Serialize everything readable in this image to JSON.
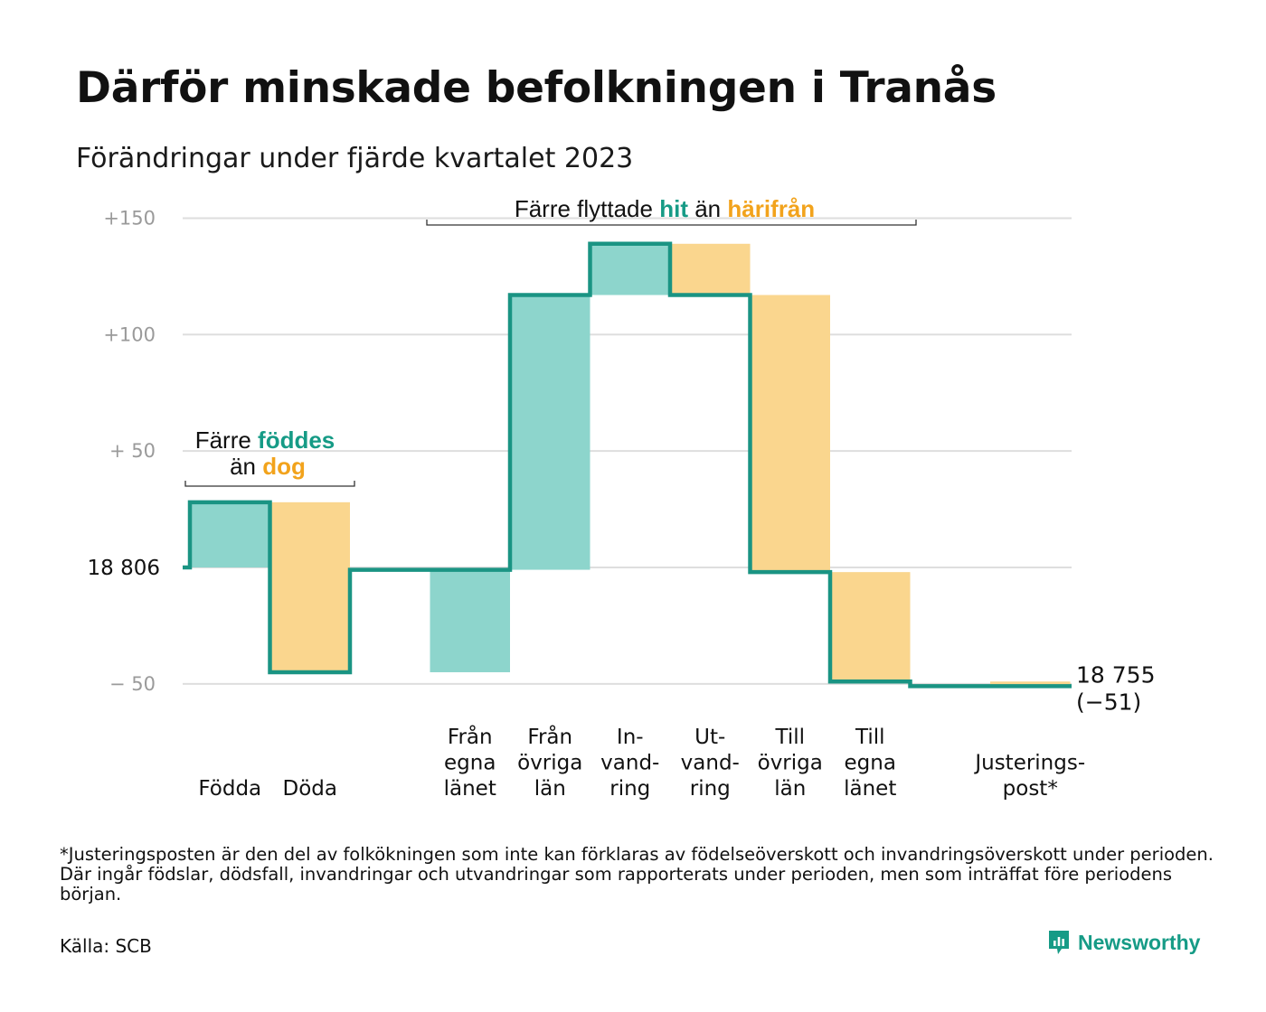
{
  "title": "Därför minskade befolkningen i Tranås",
  "subtitle": "Förändringar under fjärde kvartalet 2023",
  "colors": {
    "line": "#1a9483",
    "inflow": "#8dd5cc",
    "outflow": "#fad68e",
    "accent_teal": "#169b86",
    "accent_orange": "#f2a31c",
    "grid": "#dedede",
    "tick": "#9a9a9a"
  },
  "chart_data": {
    "type": "bar",
    "subtype": "waterfall",
    "start_value": 18806,
    "start_label": "18 806",
    "end_value": 18755,
    "end_label": "18 755",
    "end_change_label": "(−51)",
    "ylim": [
      -55,
      155
    ],
    "yticks": [
      {
        "value": 150,
        "label": "+150"
      },
      {
        "value": 100,
        "label": "+100"
      },
      {
        "value": 50,
        "label": "+ 50"
      },
      {
        "value": -50,
        "label": "− 50"
      }
    ],
    "grid": true,
    "steps": [
      {
        "label": [
          "Födda"
        ],
        "delta": 28,
        "kind": "inflow"
      },
      {
        "label": [
          "Döda"
        ],
        "delta": -73,
        "kind": "outflow"
      },
      {
        "label": [
          "Från",
          "egna",
          "länet"
        ],
        "delta": 44,
        "kind": "inflow"
      },
      {
        "label": [
          "Från",
          "övriga",
          "län"
        ],
        "delta": 118,
        "kind": "inflow"
      },
      {
        "label": [
          "In-",
          "vand-",
          "ring"
        ],
        "delta": 22,
        "kind": "inflow"
      },
      {
        "label": [
          "Ut-",
          "vand-",
          "ring"
        ],
        "delta": -22,
        "kind": "outflow"
      },
      {
        "label": [
          "Till",
          "övriga",
          "län"
        ],
        "delta": -119,
        "kind": "outflow"
      },
      {
        "label": [
          "Till",
          "egna",
          "länet"
        ],
        "delta": -47,
        "kind": "outflow"
      },
      {
        "label": [
          "Justerings-",
          "post*"
        ],
        "delta": -2,
        "kind": "outflow"
      }
    ],
    "annotations": [
      {
        "parts": [
          {
            "text": "Färre ",
            "style": "plain"
          },
          {
            "text": "föddes",
            "style": "teal"
          }
        ],
        "parts2": [
          {
            "text": "än ",
            "style": "plain"
          },
          {
            "text": "dog",
            "style": "orange"
          }
        ]
      },
      {
        "parts": [
          {
            "text": "Färre flyttade ",
            "style": "plain"
          },
          {
            "text": "hit",
            "style": "teal"
          },
          {
            "text": " än ",
            "style": "plain"
          },
          {
            "text": "härifrån",
            "style": "orange"
          }
        ]
      }
    ]
  },
  "footnote": "*Justeringsposten är den del av folkökningen som inte kan förklaras av födelseöverskott och invandringsöverskott under perioden. Där ingår födslar, dödsfall, invandringar och utvandringar som rapporterats under perioden, men som inträffat före periodens början.",
  "source": "Källa: SCB",
  "brand": "Newsworthy",
  "brand_icon": "newsworthy-logo-icon"
}
